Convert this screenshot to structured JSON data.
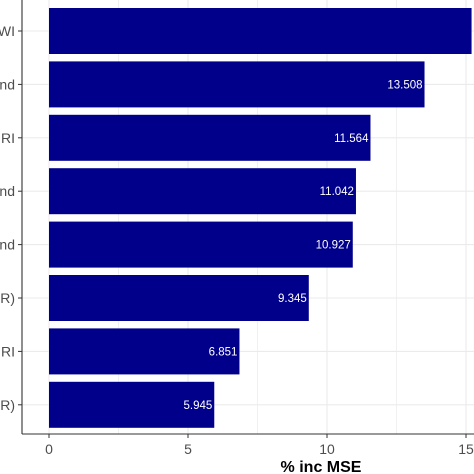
{
  "chart_data": {
    "type": "bar",
    "orientation": "horizontal",
    "categories": [
      "WI",
      "nd",
      "RI",
      "nd",
      "nd",
      "R)",
      "RI",
      "R)"
    ],
    "values": [
      15.2,
      13.508,
      11.564,
      11.042,
      10.927,
      9.345,
      6.851,
      5.945
    ],
    "data_labels": [
      "",
      "13.508",
      "11.564",
      "11.042",
      "10.927",
      "9.345",
      "6.851",
      "5.945"
    ],
    "xlabel": "% inc MSE",
    "x_ticks": [
      "0",
      "5",
      "10",
      "15"
    ],
    "xlim": [
      0,
      15
    ],
    "grid": true,
    "bar_color": "#00008B",
    "grid_color": "#ebebeb",
    "axis_color": "#333333"
  }
}
